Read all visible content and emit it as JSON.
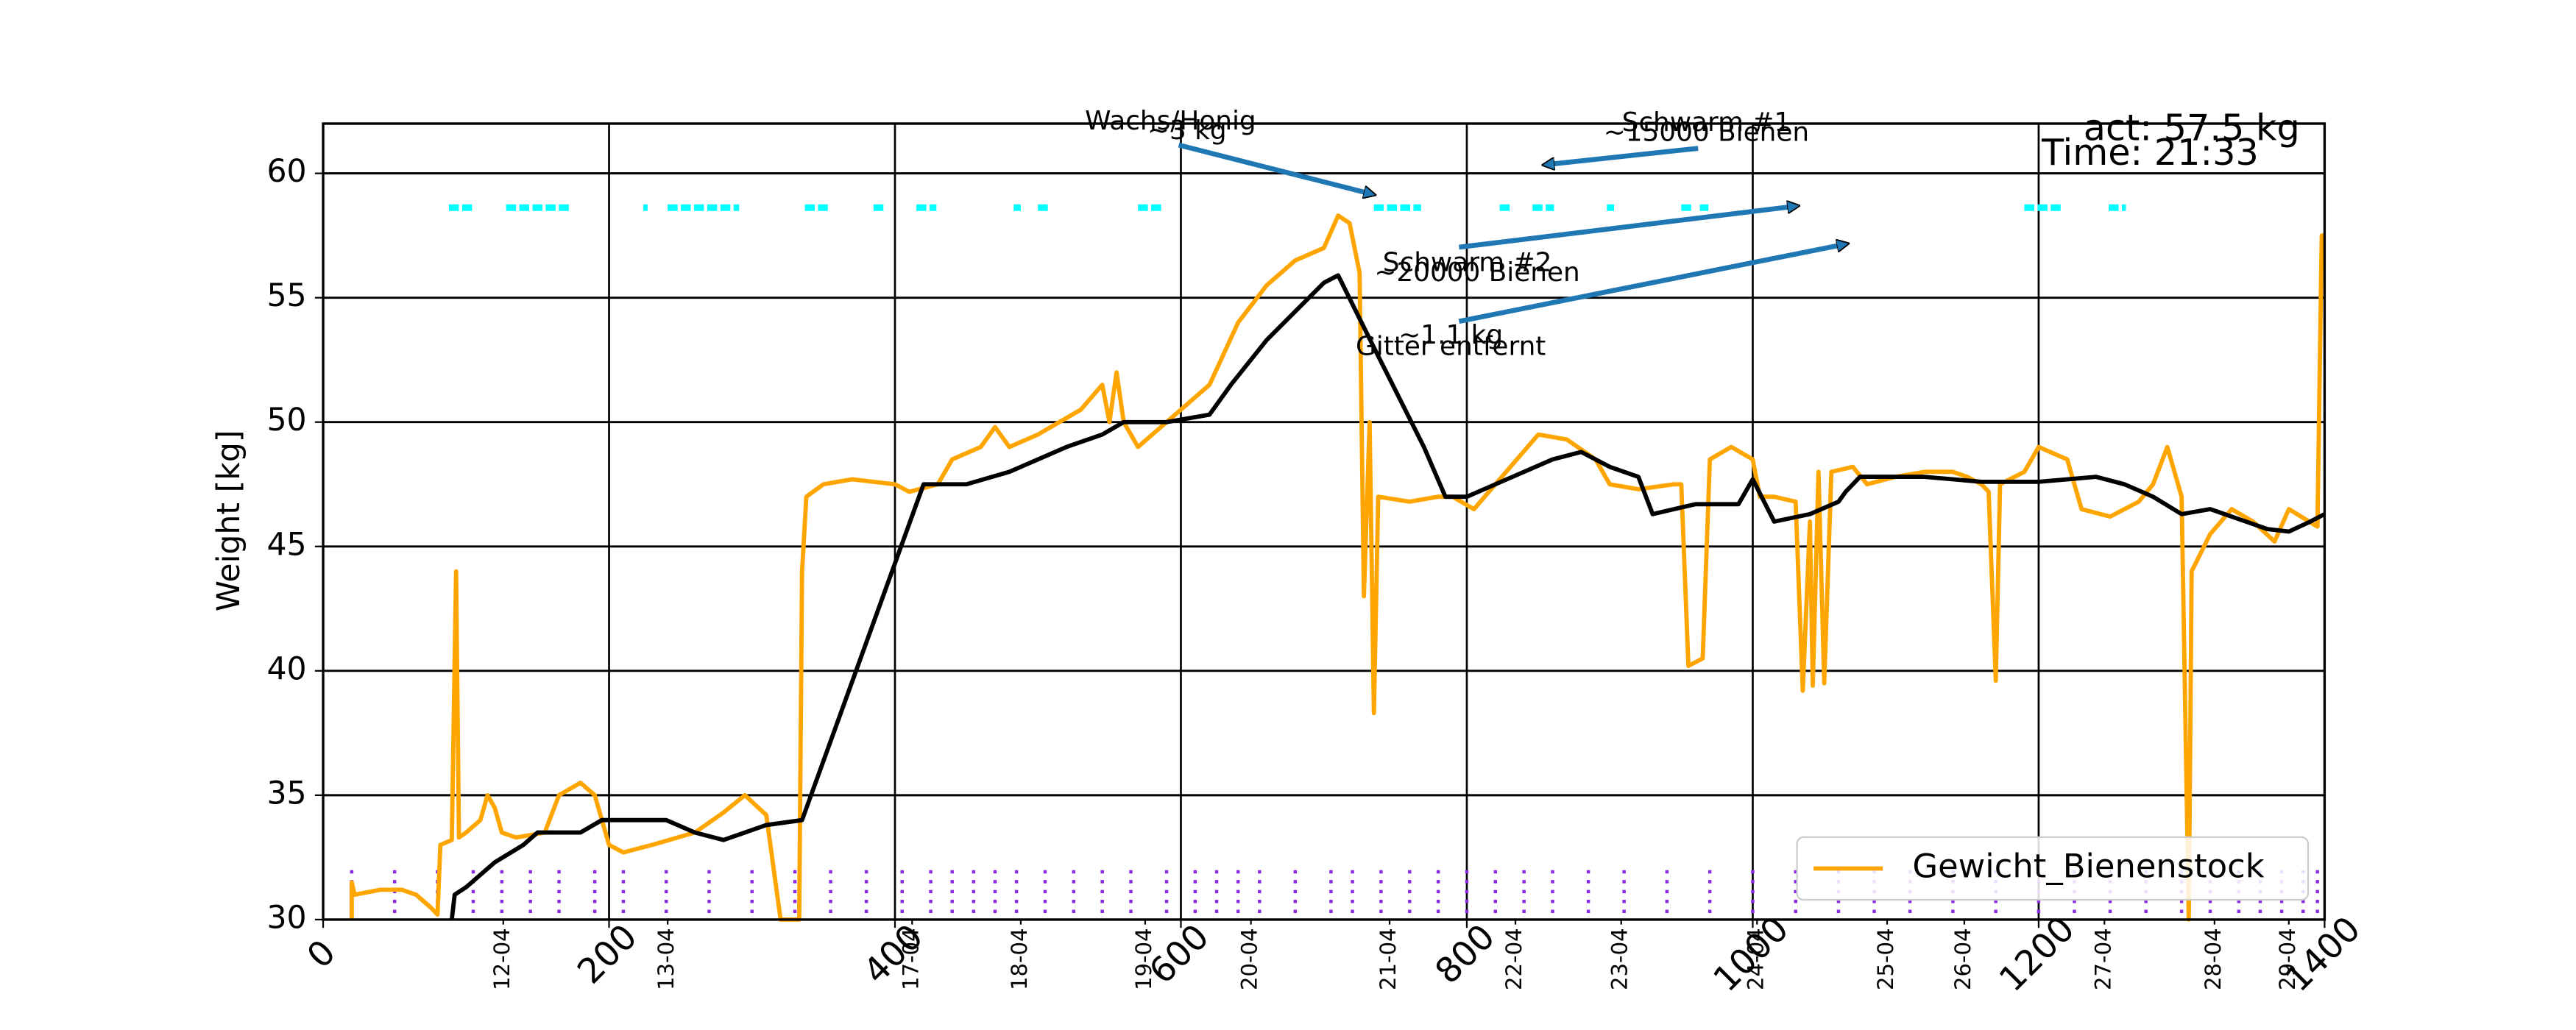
{
  "chart_data": {
    "type": "line",
    "ylabel": "Weight [kg]",
    "xlim": [
      0,
      1400
    ],
    "ylim": [
      30,
      62
    ],
    "xticks": [
      0,
      200,
      400,
      600,
      800,
      1000,
      1200,
      1400
    ],
    "yticks": [
      30,
      35,
      40,
      45,
      50,
      55,
      60
    ],
    "grid": true,
    "legend_position": "lower right",
    "date_labels": [
      {
        "value": 126,
        "label": "12-04"
      },
      {
        "value": 241,
        "label": "13-04"
      },
      {
        "value": 412,
        "label": "17-04"
      },
      {
        "value": 488,
        "label": "18-04"
      },
      {
        "value": 575,
        "label": "19-04"
      },
      {
        "value": 649,
        "label": "20-04"
      },
      {
        "value": 746,
        "label": "21-04"
      },
      {
        "value": 834,
        "label": "22-04"
      },
      {
        "value": 908,
        "label": "23-04"
      },
      {
        "value": 1003,
        "label": "24-04"
      },
      {
        "value": 1094,
        "label": "25-04"
      },
      {
        "value": 1148,
        "label": "26-04"
      },
      {
        "value": 1246,
        "label": "27-04"
      },
      {
        "value": 1323,
        "label": "28-04"
      },
      {
        "value": 1375,
        "label": "29-04"
      }
    ],
    "series": [
      {
        "name": "Gewicht_Bienenstock",
        "color": "#ffa500",
        "x": [
          20,
          20,
          22,
          40,
          55,
          65,
          75,
          80,
          82,
          90,
          93,
          95,
          100,
          110,
          115,
          120,
          125,
          135,
          155,
          165,
          180,
          190,
          200,
          210,
          230,
          260,
          280,
          295,
          310,
          320,
          333,
          335,
          338,
          350,
          370,
          400,
          410,
          430,
          440,
          460,
          470,
          480,
          500,
          530,
          545,
          550,
          555,
          560,
          570,
          590,
          600,
          620,
          640,
          660,
          680,
          700,
          710,
          718,
          725,
          728,
          732,
          735,
          738,
          760,
          780,
          790,
          805,
          820,
          850,
          870,
          890,
          900,
          920,
          945,
          950,
          955,
          965,
          970,
          985,
          1000,
          1005,
          1015,
          1030,
          1035,
          1040,
          1042,
          1046,
          1050,
          1055,
          1070,
          1080,
          1100,
          1120,
          1140,
          1150,
          1160,
          1165,
          1170,
          1173,
          1190,
          1200,
          1220,
          1230,
          1250,
          1270,
          1280,
          1290,
          1300,
          1305,
          1307,
          1320,
          1335,
          1350,
          1365,
          1375,
          1395,
          1398,
          1400
        ],
        "values": [
          30,
          31.5,
          31,
          31.2,
          31.2,
          31,
          30.5,
          30.2,
          33,
          33.2,
          44,
          33.3,
          33.5,
          34,
          35,
          34.5,
          33.5,
          33.3,
          33.5,
          35,
          35.5,
          35,
          33,
          32.7,
          33,
          33.5,
          34.3,
          35,
          34.2,
          30,
          30,
          44,
          47,
          47.5,
          47.7,
          47.5,
          47.2,
          47.5,
          48.5,
          49,
          49.8,
          49,
          49.5,
          50.5,
          51.5,
          50,
          52,
          50,
          49,
          50,
          50.5,
          51.5,
          54,
          55.5,
          56.5,
          57,
          58.3,
          58,
          56,
          43,
          50,
          38.3,
          47,
          46.8,
          47,
          47,
          46.5,
          47.5,
          49.5,
          49.3,
          48.5,
          47.5,
          47.3,
          47.5,
          47.5,
          40.2,
          40.5,
          48.5,
          49,
          48.5,
          47,
          47,
          46.8,
          39.2,
          46,
          39.4,
          48,
          39.5,
          48,
          48.2,
          47.5,
          47.8,
          48,
          48,
          47.8,
          47.5,
          47.2,
          39.6,
          47.5,
          48,
          49,
          48.5,
          46.5,
          46.2,
          46.8,
          47.5,
          49,
          47,
          30,
          44,
          45.5,
          46.5,
          46,
          45.2,
          46.5,
          45.8,
          57.5,
          57.5
        ]
      },
      {
        "color": "#000000",
        "x": [
          90,
          92,
          100,
          120,
          140,
          150,
          180,
          195,
          240,
          260,
          280,
          310,
          335,
          420,
          450,
          480,
          520,
          545,
          560,
          590,
          620,
          635,
          660,
          700,
          710,
          735,
          770,
          785,
          800,
          820,
          860,
          880,
          900,
          920,
          930,
          960,
          990,
          1000,
          1015,
          1040,
          1060,
          1065,
          1075,
          1120,
          1160,
          1200,
          1240,
          1260,
          1280,
          1300,
          1320,
          1360,
          1375,
          1390,
          1400
        ],
        "values": [
          30,
          31,
          31.3,
          32.3,
          33,
          33.5,
          33.5,
          34,
          34,
          33.5,
          33.2,
          33.8,
          34,
          47.5,
          47.5,
          48,
          49,
          49.5,
          50,
          50,
          50.3,
          51.5,
          53.3,
          55.6,
          55.9,
          53,
          49,
          47,
          47,
          47.5,
          48.5,
          48.8,
          48.2,
          47.8,
          46.3,
          46.7,
          46.7,
          47.7,
          46,
          46.3,
          46.8,
          47.2,
          47.8,
          47.8,
          47.6,
          47.6,
          47.8,
          47.5,
          47,
          46.3,
          46.5,
          45.7,
          45.6,
          46,
          46.3
        ]
      }
    ],
    "cyan_segments": [
      [
        88,
        106
      ],
      [
        128,
        172
      ],
      [
        224,
        227
      ],
      [
        241,
        291
      ],
      [
        337,
        353
      ],
      [
        385,
        393
      ],
      [
        415,
        429
      ],
      [
        483,
        488
      ],
      [
        500,
        509
      ],
      [
        570,
        588
      ],
      [
        735,
        768
      ],
      [
        823,
        831
      ],
      [
        846,
        861
      ],
      [
        898,
        903
      ],
      [
        950,
        957
      ],
      [
        963,
        969
      ],
      [
        1190,
        1216
      ],
      [
        1249,
        1261
      ]
    ],
    "cyan_color": "#00ffff",
    "purple_marks": [
      20,
      50,
      80,
      105,
      125,
      145,
      165,
      190,
      210,
      240,
      270,
      300,
      330,
      355,
      380,
      405,
      425,
      440,
      455,
      470,
      485,
      505,
      525,
      545,
      565,
      590,
      610,
      625,
      640,
      655,
      680,
      705,
      720,
      740,
      760,
      780,
      800,
      820,
      840,
      860,
      885,
      910,
      940,
      970,
      1000,
      1030,
      1060,
      1085,
      1110,
      1140,
      1170,
      1200,
      1225,
      1250,
      1275,
      1300,
      1320,
      1340,
      1355,
      1370,
      1385,
      1395
    ],
    "purple_color": "#8a2be2",
    "annotations": [
      "Wachs/Honig",
      "~3 kg",
      "Schwarm #1",
      "~15000 Bienen",
      "Schwarm #2",
      "~20000 Bienen",
      "~1.1 kg",
      "Gitter entfernt",
      "act: 57.5 kg",
      "Time: 21:33"
    ]
  }
}
